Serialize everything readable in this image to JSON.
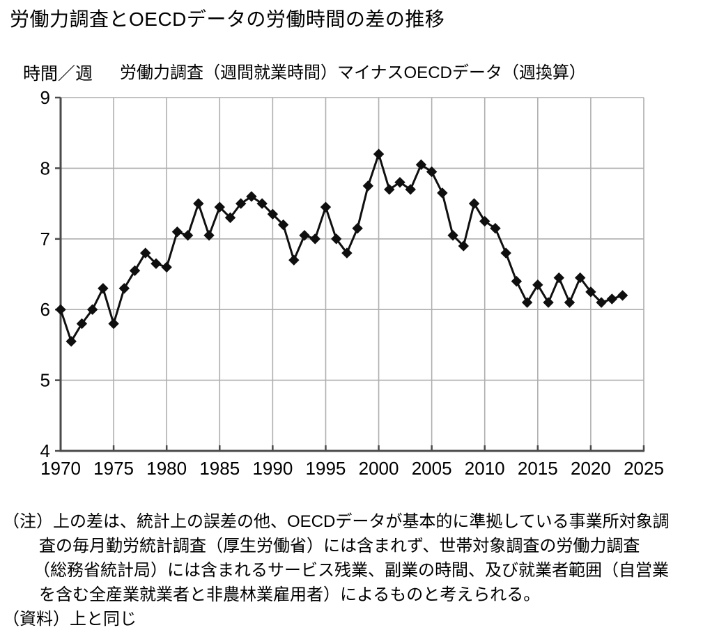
{
  "page": {
    "title": "労働力調査とOECDデータの労働時間の差の推移"
  },
  "chart": {
    "y_axis_unit": "時間／週",
    "series_label": "労働力調査（週間就業時間）マイナスOECDデータ（週換算）"
  },
  "notes": {
    "lines": [
      "（注）上の差は、統計上の誤差の他、OECDデータが基本的に準拠している事業所対象調",
      "査の毎月勤労統計調査（厚生労働省）には含まれず、世帯対象調査の労働力調査",
      "（総務省統計局）には含まれるサービス残業、副業の時間、及び就業者範囲（自営業",
      "を含む全産業就業者と非農林業雇用者）によるものと考えられる。",
      "（資料）上と同じ"
    ]
  },
  "chart_data": {
    "type": "line",
    "title": "労働力調査とOECDデータの労働時間の差の推移",
    "subtitle": "労働力調査（週間就業時間）マイナスOECDデータ（週換算）",
    "ylabel": "時間／週",
    "xlabel": "",
    "xlim": [
      1970,
      2025
    ],
    "ylim": [
      4,
      9
    ],
    "x_ticks": [
      1970,
      1975,
      1980,
      1985,
      1990,
      1995,
      2000,
      2005,
      2010,
      2015,
      2020,
      2025
    ],
    "y_ticks": [
      4,
      5,
      6,
      7,
      8,
      9
    ],
    "grid": true,
    "legend_position": "none",
    "marker": "diamond",
    "colors": {
      "line": "#0f0f0f",
      "marker": "#0f0f0f",
      "grid": "#aeaeae",
      "axis": "#4a4a4a",
      "tick_text": "#000000"
    },
    "series": [
      {
        "name": "労働力調査（週間就業時間）マイナスOECDデータ（週換算）",
        "x": [
          1970,
          1971,
          1972,
          1973,
          1974,
          1975,
          1976,
          1977,
          1978,
          1979,
          1980,
          1981,
          1982,
          1983,
          1984,
          1985,
          1986,
          1987,
          1988,
          1989,
          1990,
          1991,
          1992,
          1993,
          1994,
          1995,
          1996,
          1997,
          1998,
          1999,
          2000,
          2001,
          2002,
          2003,
          2004,
          2005,
          2006,
          2007,
          2008,
          2009,
          2010,
          2011,
          2012,
          2013,
          2014,
          2015,
          2016,
          2017,
          2018,
          2019,
          2020,
          2021,
          2022,
          2023
        ],
        "y": [
          6.0,
          5.55,
          5.8,
          6.0,
          6.3,
          5.8,
          6.3,
          6.55,
          6.8,
          6.65,
          6.6,
          7.1,
          7.05,
          7.5,
          7.05,
          7.45,
          7.3,
          7.5,
          7.6,
          7.5,
          7.35,
          7.2,
          6.7,
          7.05,
          7.0,
          7.45,
          7.0,
          6.8,
          7.15,
          7.75,
          8.2,
          7.7,
          7.8,
          7.7,
          8.05,
          7.95,
          7.65,
          7.05,
          6.9,
          7.5,
          7.25,
          7.15,
          6.8,
          6.4,
          6.1,
          6.35,
          6.1,
          6.45,
          6.1,
          6.45,
          6.25,
          6.1,
          6.15,
          6.2
        ]
      }
    ]
  }
}
